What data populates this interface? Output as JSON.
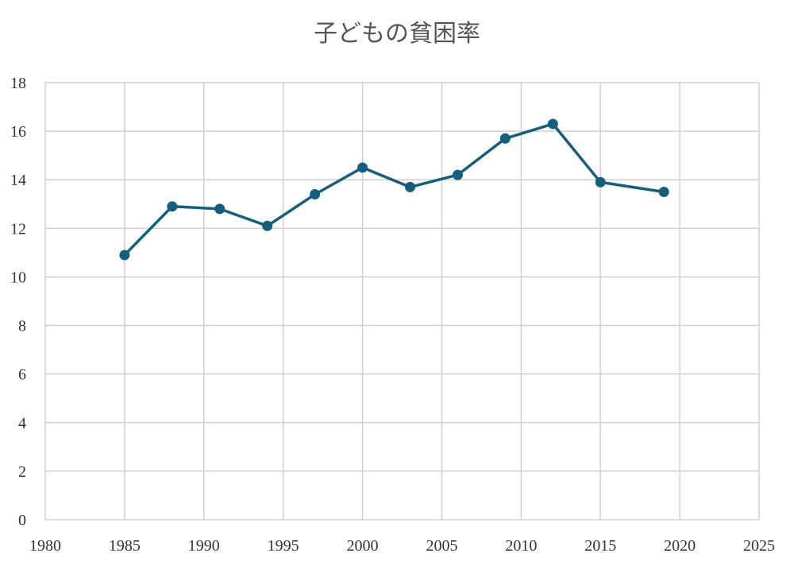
{
  "chart_data": {
    "type": "line",
    "title": "子どもの貧困率",
    "xlabel": "",
    "ylabel": "",
    "xlim": [
      1980,
      2025
    ],
    "ylim": [
      0,
      18
    ],
    "x_ticks": [
      1980,
      1985,
      1990,
      1995,
      2000,
      2005,
      2010,
      2015,
      2020,
      2025
    ],
    "y_ticks": [
      0,
      2,
      4,
      6,
      8,
      10,
      12,
      14,
      16,
      18
    ],
    "grid": true,
    "legend": "none",
    "colors": {
      "series": "#145e7f",
      "grid": "#d0d0d0",
      "title": "#555555",
      "ticks": "#333333"
    },
    "series": [
      {
        "x": [
          1985,
          1988,
          1991,
          1994,
          1997,
          2000,
          2003,
          2006,
          2009,
          2012,
          2015,
          2019
        ],
        "values": [
          10.9,
          12.9,
          12.8,
          12.1,
          13.4,
          14.5,
          13.7,
          14.2,
          15.7,
          16.3,
          13.9,
          13.5
        ]
      }
    ]
  }
}
